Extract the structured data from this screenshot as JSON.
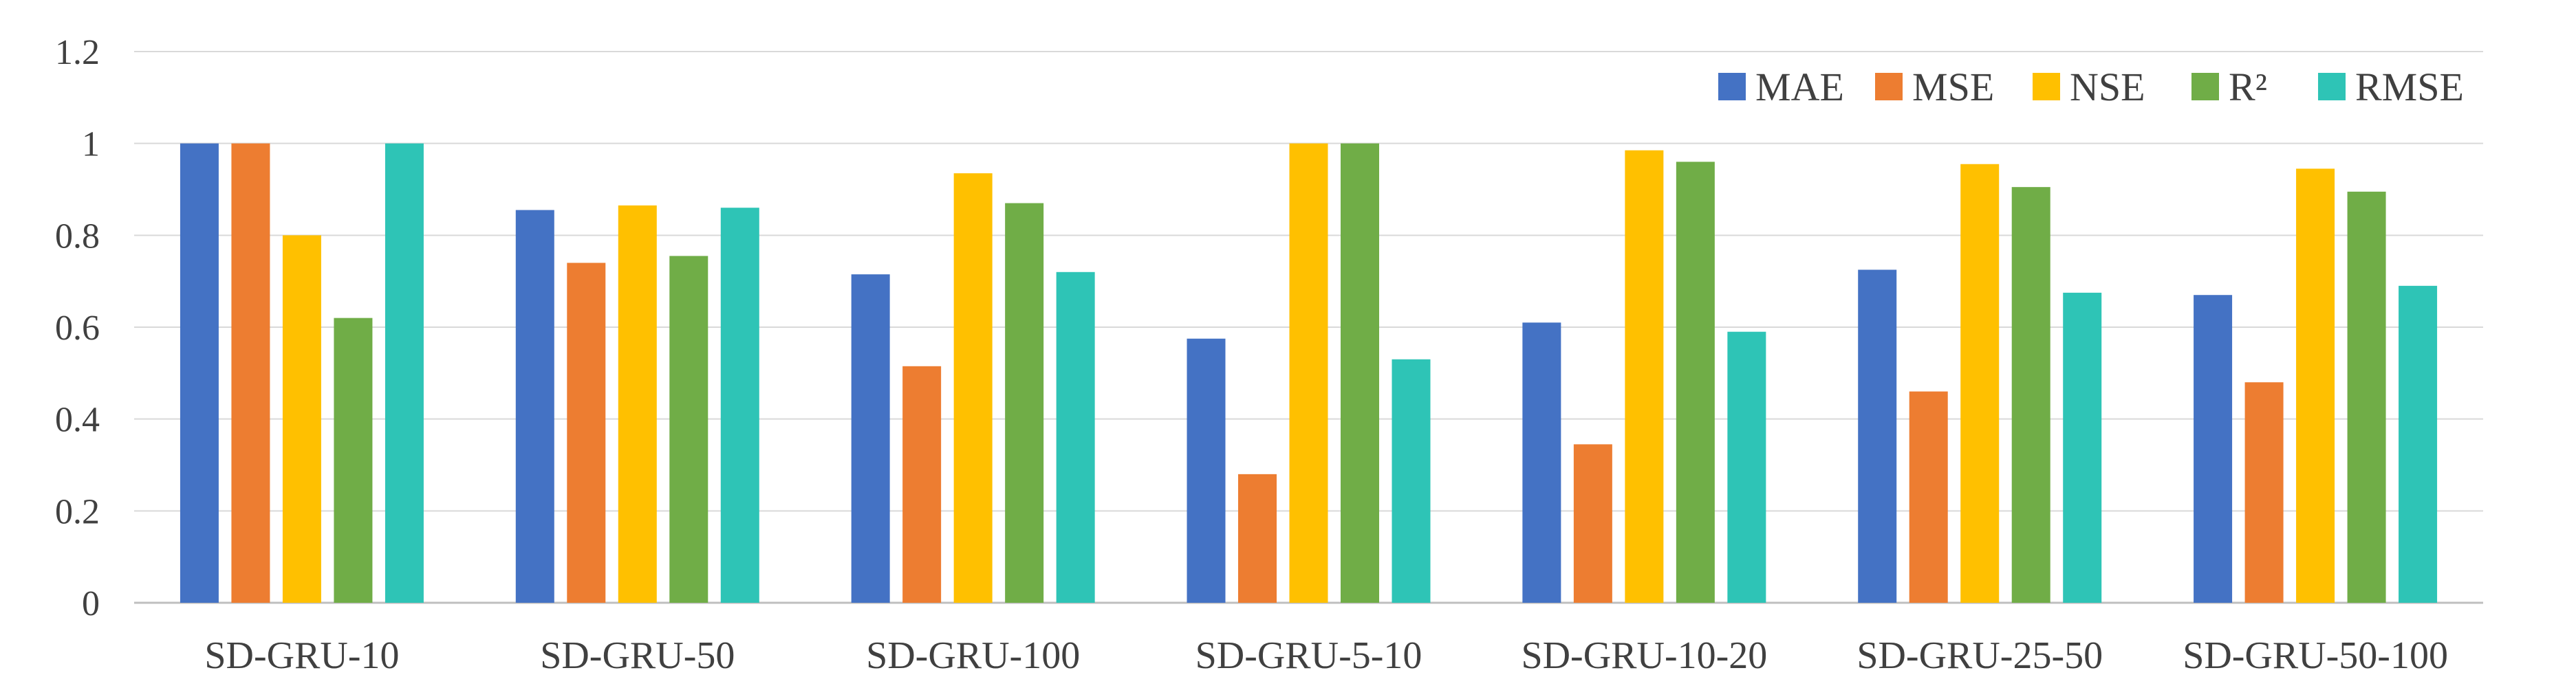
{
  "chart_data": {
    "type": "bar",
    "title": "",
    "xlabel": "",
    "ylabel": "",
    "ylim": [
      0,
      1.2
    ],
    "yticks": [
      "0",
      "0.2",
      "0.4",
      "0.6",
      "0.8",
      "1",
      "1.2"
    ],
    "ytick_values": [
      0,
      0.2,
      0.4,
      0.6,
      0.8,
      1.0,
      1.2
    ],
    "grid": true,
    "legend_position": "top-right",
    "categories": [
      "SD-GRU-10",
      "SD-GRU-50",
      "SD-GRU-100",
      "SD-GRU-5-10",
      "SD-GRU-10-20",
      "SD-GRU-25-50",
      "SD-GRU-50-100"
    ],
    "series": [
      {
        "name": "MAE",
        "color": "#4472C4",
        "values": [
          1.0,
          0.855,
          0.715,
          0.575,
          0.61,
          0.725,
          0.67
        ]
      },
      {
        "name": "MSE",
        "color": "#ED7D31",
        "values": [
          1.0,
          0.74,
          0.515,
          0.28,
          0.345,
          0.46,
          0.48
        ]
      },
      {
        "name": "NSE",
        "color": "#FFC000",
        "values": [
          0.8,
          0.865,
          0.935,
          1.0,
          0.985,
          0.955,
          0.945
        ]
      },
      {
        "name": "R²",
        "color": "#70AD47",
        "values": [
          0.62,
          0.755,
          0.87,
          1.0,
          0.96,
          0.905,
          0.895
        ]
      },
      {
        "name": "RMSE",
        "color": "#2EC4B6",
        "values": [
          1.0,
          0.86,
          0.72,
          0.53,
          0.59,
          0.675,
          0.69
        ]
      }
    ]
  }
}
